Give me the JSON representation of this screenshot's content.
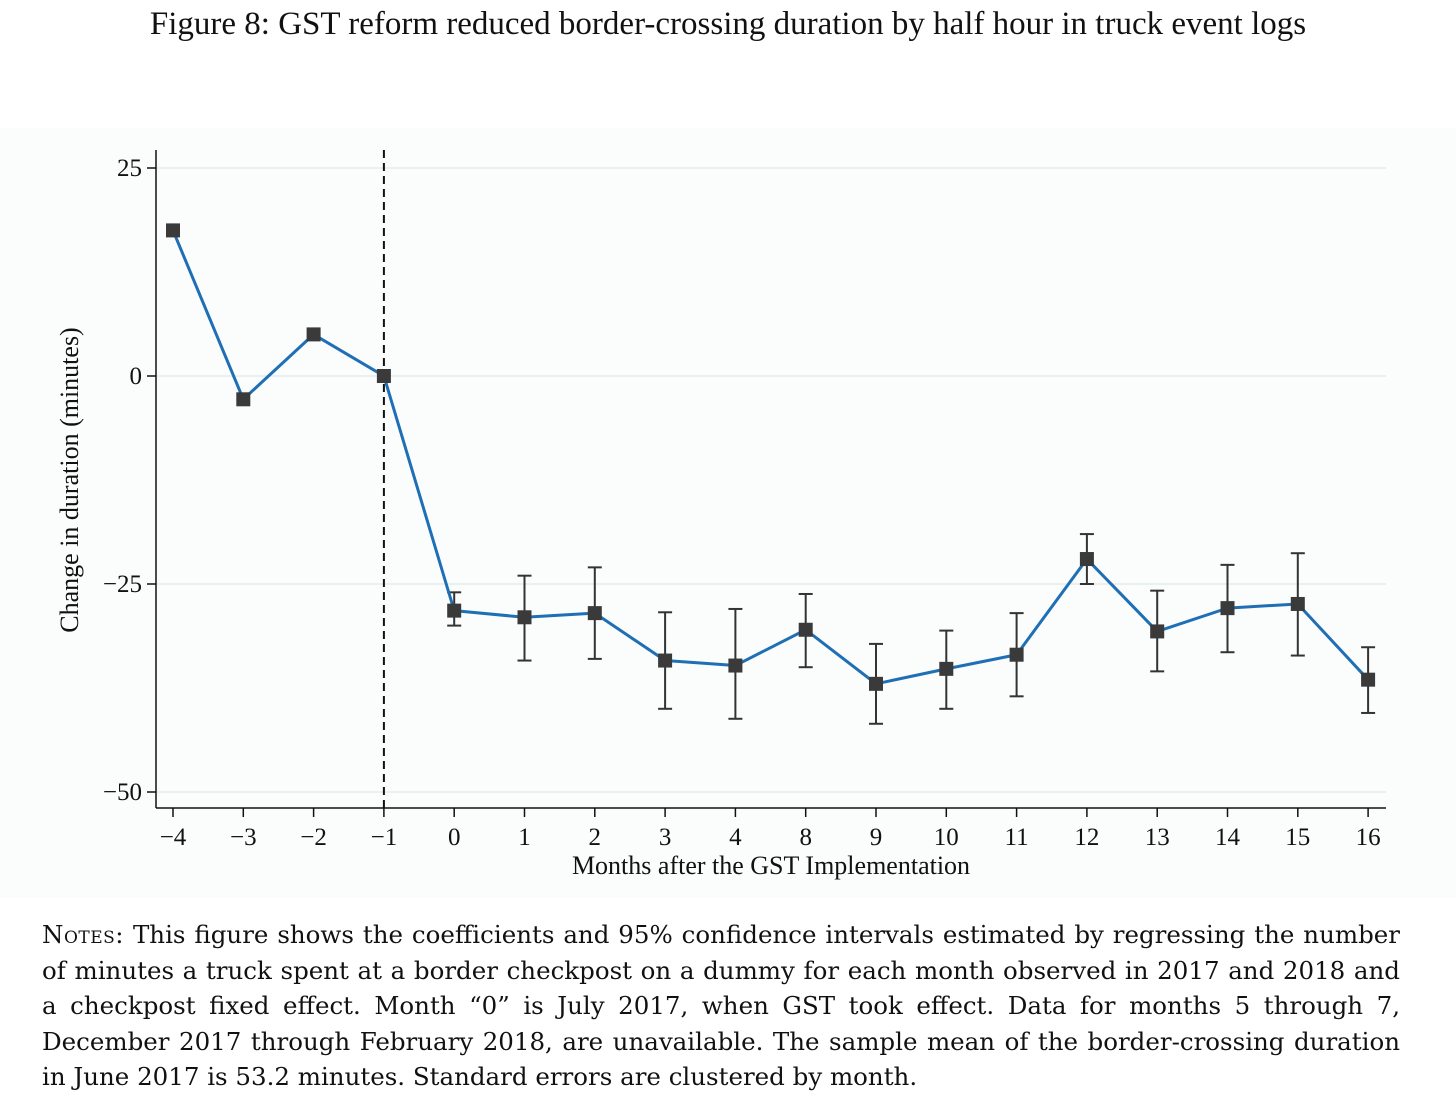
{
  "figure": {
    "title": "Figure 8: GST reform reduced border-crossing duration by half hour in truck event logs",
    "notes_label": "Notes:",
    "notes_text": "This figure shows the coefficients and 95% confidence intervals estimated by regressing the number of minutes a truck spent at a border checkpost on a dummy for each month observed in 2017 and 2018 and a checkpost fixed effect. Month “0” is July 2017, when GST took effect. Data for months 5 through 7, December 2017 through February 2018, are unavailable. The sample mean of the border-crossing duration in June 2017 is 53.2 minutes. Standard errors are clustered by month."
  },
  "chart_data": {
    "type": "line",
    "title": "",
    "xlabel": "Months after the GST Implementation",
    "ylabel": "Change in duration (minutes)",
    "categories": [
      "−4",
      "−3",
      "−2",
      "−1",
      "0",
      "1",
      "2",
      "3",
      "4",
      "8",
      "9",
      "10",
      "11",
      "12",
      "13",
      "14",
      "15",
      "16"
    ],
    "series": [
      {
        "values": [
          17.5,
          -2.8,
          5.0,
          0.0,
          -28.2,
          -29.0,
          -28.5,
          -34.2,
          -34.8,
          -30.5,
          -37.0,
          -35.2,
          -33.5,
          -22.0,
          -30.7,
          -27.9,
          -27.4,
          -36.5
        ],
        "ci_low": [
          null,
          null,
          null,
          null,
          -30.0,
          -34.2,
          -34.0,
          -40.0,
          -41.2,
          -35.0,
          -41.8,
          -40.0,
          -38.5,
          -25.0,
          -35.5,
          -33.2,
          -33.6,
          -40.5
        ],
        "ci_high": [
          null,
          null,
          null,
          null,
          -26.0,
          -24.0,
          -23.0,
          -28.4,
          -28.0,
          -26.2,
          -32.2,
          -30.6,
          -28.5,
          -19.0,
          -25.8,
          -22.7,
          -21.3,
          -32.6
        ]
      }
    ],
    "yticks": [
      25,
      0,
      -25,
      -50
    ],
    "ytick_labels": [
      "25",
      "0",
      "−25",
      "−50"
    ],
    "ylim": [
      -52,
      27
    ],
    "reference_line_at": "−1",
    "grid": true,
    "line_color": "#1f6fb5",
    "marker_color": "#3a3a3a"
  }
}
